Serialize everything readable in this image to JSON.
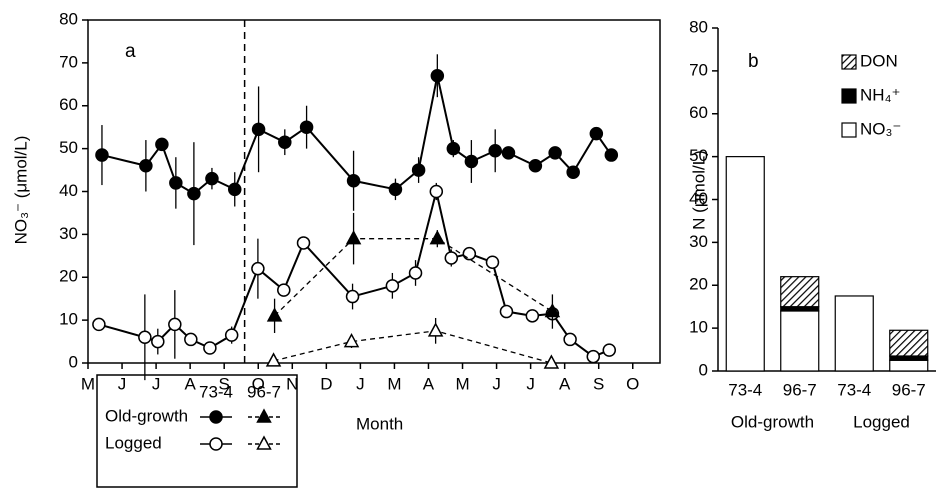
{
  "chart_data": [
    {
      "type": "line",
      "panel": "a",
      "xlabel": "Month",
      "ylabel": "NO₃⁻ (μmol/L)",
      "xlim": [
        0,
        16.8
      ],
      "xticks": [
        {
          "value": 0,
          "label": "M"
        },
        {
          "value": 1,
          "label": "J"
        },
        {
          "value": 2,
          "label": "J"
        },
        {
          "value": 3,
          "label": "A"
        },
        {
          "value": 4,
          "label": "S"
        },
        {
          "value": 5,
          "label": "O"
        },
        {
          "value": 6,
          "label": "N"
        },
        {
          "value": 7,
          "label": "D"
        },
        {
          "value": 8,
          "label": "J"
        },
        {
          "value": 9,
          "label": "M"
        },
        {
          "value": 10,
          "label": "A"
        },
        {
          "value": 11,
          "label": "M"
        },
        {
          "value": 12,
          "label": "J"
        },
        {
          "value": 13,
          "label": "J"
        },
        {
          "value": 14,
          "label": "A"
        },
        {
          "value": 15,
          "label": "S"
        },
        {
          "value": 16,
          "label": "O"
        }
      ],
      "ylim": [
        0,
        80
      ],
      "yticks": [
        0,
        10,
        20,
        30,
        40,
        50,
        60,
        70,
        80
      ],
      "divider_x": 4.6,
      "series": [
        {
          "group": "Old-growth",
          "period": "73-4",
          "marker": "circle",
          "filled": true,
          "dashed": false,
          "x": [
            0.41,
            1.7,
            2.17,
            2.58,
            3.11,
            3.64,
            4.31,
            5.01,
            5.78,
            6.42,
            7.8,
            9.03,
            9.71,
            10.26,
            10.73,
            11.26,
            11.96,
            12.35,
            13.14,
            13.72,
            14.25,
            14.93,
            15.37
          ],
          "values": [
            48.5,
            46,
            51,
            42,
            39.5,
            43,
            40.5,
            54.5,
            51.5,
            55,
            42.5,
            40.5,
            45,
            67,
            50,
            47,
            49.5,
            49,
            46,
            49,
            44.5,
            53.5,
            48.5
          ],
          "errors": [
            7,
            6,
            1.5,
            6,
            12,
            2.5,
            4,
            10,
            3,
            5,
            7,
            2.5,
            3,
            5,
            2,
            5,
            5,
            0,
            0,
            0,
            0,
            0,
            0
          ]
        },
        {
          "group": "Logged",
          "period": "73-4",
          "marker": "circle",
          "filled": false,
          "dashed": false,
          "x": [
            0.32,
            1.67,
            2.05,
            2.55,
            3.02,
            3.58,
            4.22,
            4.99,
            5.75,
            6.33,
            7.77,
            8.94,
            9.62,
            10.23,
            10.67,
            11.2,
            11.88,
            12.29,
            13.05,
            13.64,
            14.16,
            14.84,
            15.31
          ],
          "values": [
            9,
            6,
            5,
            9,
            5.5,
            3.5,
            6.5,
            22,
            17,
            28,
            15.5,
            18,
            21,
            40,
            24.5,
            25.5,
            23.5,
            12,
            11,
            11.5,
            5.5,
            1.5,
            3
          ],
          "errors": [
            0,
            10,
            3,
            8,
            0,
            0,
            2,
            7,
            0,
            1.5,
            3,
            3,
            3,
            2,
            2,
            0,
            0,
            0,
            0,
            0,
            0,
            0,
            0
          ]
        },
        {
          "group": "Old-growth",
          "period": "96-7",
          "marker": "triangle",
          "filled": true,
          "dashed": true,
          "x": [
            5.48,
            7.8,
            10.26,
            13.64
          ],
          "values": [
            11,
            29,
            29,
            12
          ],
          "errors": [
            4,
            6,
            2,
            4
          ]
        },
        {
          "group": "Logged",
          "period": "96-7",
          "marker": "triangle",
          "filled": false,
          "dashed": true,
          "x": [
            5.45,
            7.74,
            10.21,
            13.61
          ],
          "values": [
            0.5,
            5,
            7.5,
            0
          ],
          "errors": [
            0,
            1.5,
            3,
            0
          ]
        }
      ]
    },
    {
      "type": "stacked_bar",
      "panel": "b",
      "ylabel": "N (μmol/L)",
      "categories": [
        "73-4",
        "96-7",
        "73-4",
        "96-7"
      ],
      "group_labels": [
        "Old-growth",
        "Logged"
      ],
      "ylim": [
        0,
        80
      ],
      "yticks": [
        0,
        10,
        20,
        30,
        40,
        50,
        60,
        70,
        80
      ],
      "series": [
        {
          "name": "NO₃⁻",
          "color": "#ffffff",
          "values": [
            50,
            14,
            17.5,
            2.5
          ]
        },
        {
          "name": "NH₄⁺",
          "color": "#000000",
          "values": [
            0,
            1,
            0,
            1
          ]
        },
        {
          "name": "DON",
          "color": "hatch",
          "values": [
            0,
            7,
            0,
            6
          ]
        }
      ]
    }
  ]
}
